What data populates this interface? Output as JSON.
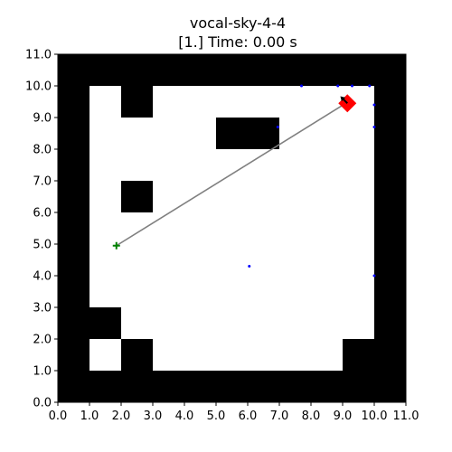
{
  "chart_data": {
    "type": "scatter",
    "title": "vocal-sky-4-4",
    "subtitle": "[1.] Time: 0.00 s",
    "xlabel": "",
    "ylabel": "",
    "xlim": [
      0,
      11
    ],
    "ylim": [
      0,
      11
    ],
    "x_ticks": [
      "0.0",
      "1.0",
      "2.0",
      "3.0",
      "4.0",
      "5.0",
      "6.0",
      "7.0",
      "8.0",
      "9.0",
      "10.0",
      "11.0"
    ],
    "y_ticks": [
      "0.0",
      "1.0",
      "2.0",
      "3.0",
      "4.0",
      "5.0",
      "6.0",
      "7.0",
      "8.0",
      "9.0",
      "10.0",
      "11.0"
    ],
    "grid": false,
    "colors": {
      "obstacle": "#000000",
      "free": "#ffffff",
      "path": "#808080",
      "start_marker": "#008000",
      "agent": "#ff0000",
      "heading": "#000000",
      "points": "#0000ff"
    },
    "obstacles": [
      {
        "x": 0,
        "y": 10,
        "w": 11,
        "h": 1
      },
      {
        "x": 0,
        "y": 0,
        "w": 11,
        "h": 1
      },
      {
        "x": 0,
        "y": 0,
        "w": 1,
        "h": 11
      },
      {
        "x": 10,
        "y": 0,
        "w": 1,
        "h": 11
      },
      {
        "x": 2,
        "y": 9,
        "w": 1,
        "h": 1
      },
      {
        "x": 5,
        "y": 8,
        "w": 2,
        "h": 1
      },
      {
        "x": 2,
        "y": 6,
        "w": 1,
        "h": 1
      },
      {
        "x": 1,
        "y": 2,
        "w": 1,
        "h": 1
      },
      {
        "x": 2,
        "y": 1,
        "w": 1,
        "h": 1
      },
      {
        "x": 9,
        "y": 1,
        "w": 1,
        "h": 1
      }
    ],
    "path_line": {
      "x": [
        1.85,
        9.1
      ],
      "y": [
        4.95,
        9.45
      ]
    },
    "start": {
      "x": 1.85,
      "y": 4.95
    },
    "agent": {
      "x": 9.15,
      "y": 9.45,
      "heading_deg": 135
    },
    "scan_points": {
      "x": [
        7.7,
        8.85,
        9.3,
        9.85,
        10.0,
        10.0,
        6.95,
        6.05,
        10.0
      ],
      "y": [
        10.0,
        10.0,
        10.0,
        10.0,
        9.4,
        8.7,
        8.7,
        4.3,
        4.0
      ]
    }
  }
}
